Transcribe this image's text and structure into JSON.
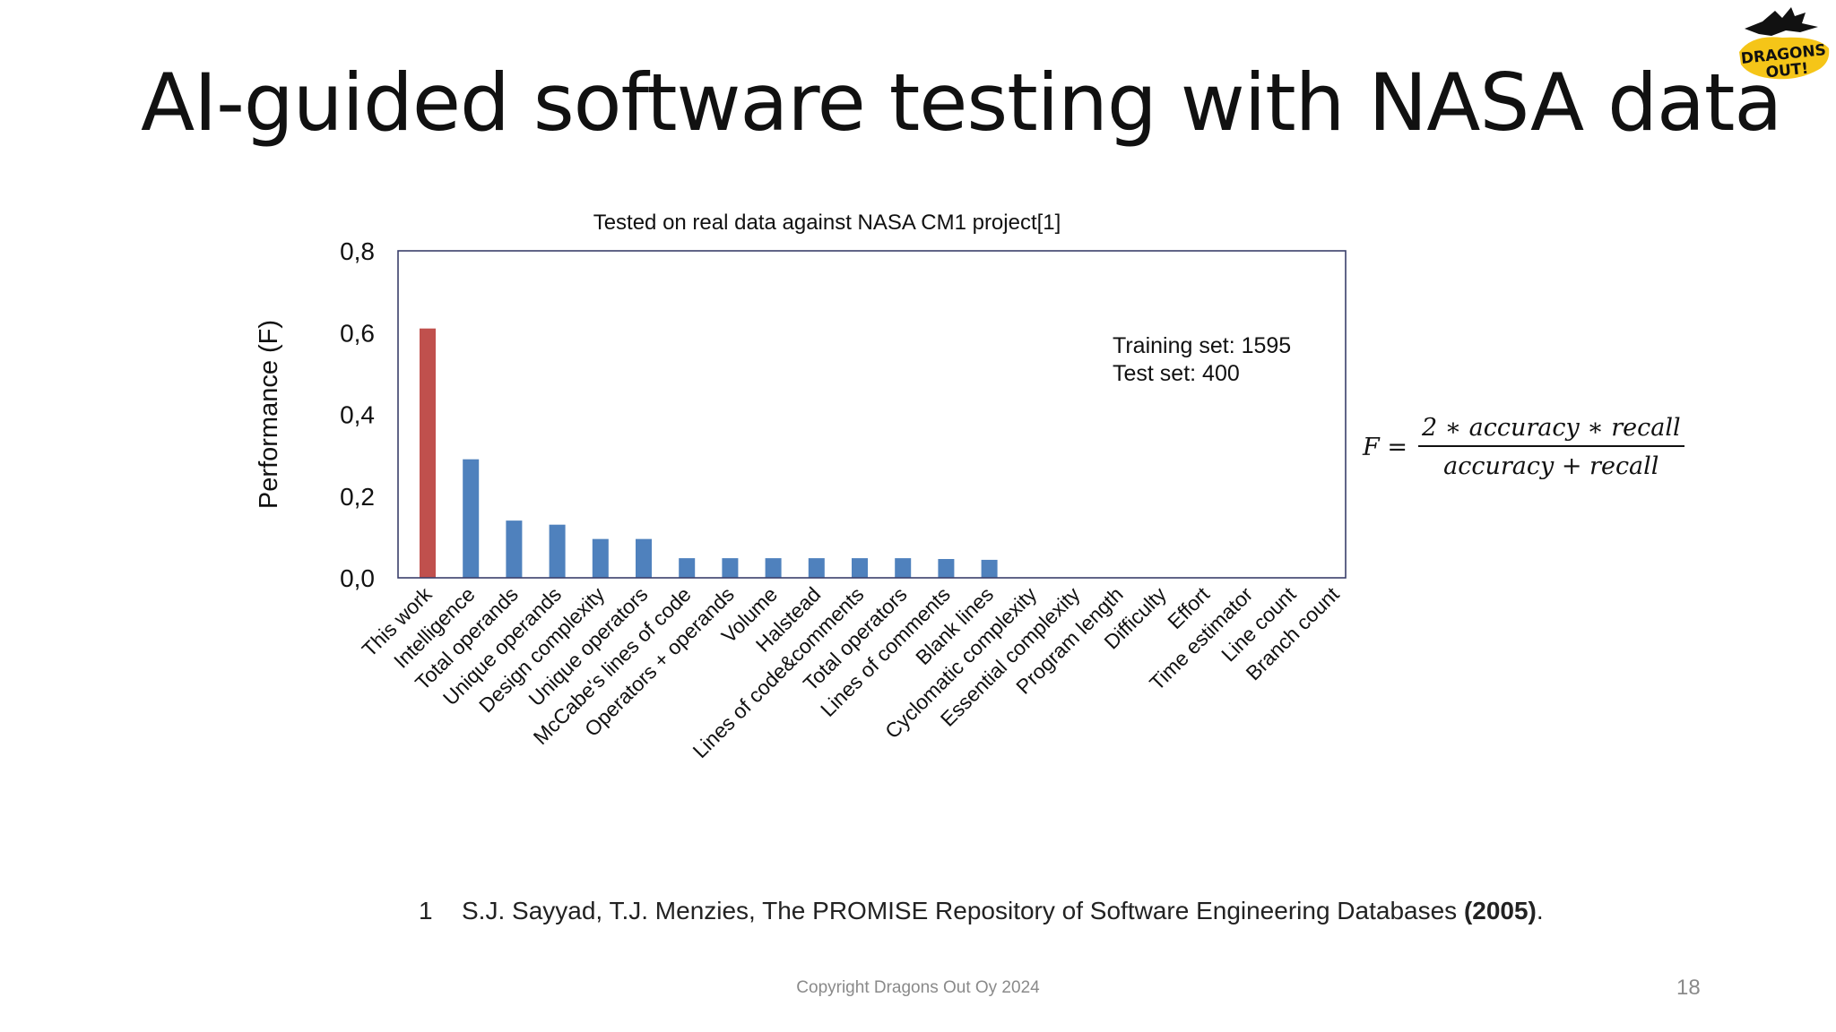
{
  "slide": {
    "title": "AI-guided software testing with NASA data",
    "logo_text_line1": "DRAGONS",
    "logo_text_line2": "OUT!",
    "reference_number": "1",
    "reference_text": "S.J. Sayyad, T.J. Menzies, The PROMISE Repository of Software Engineering  Databases ",
    "reference_year": "(2005)",
    "reference_end": ".",
    "copyright": "Copyright Dragons Out Oy 2024",
    "page_number": "18"
  },
  "formula": {
    "lhs": "F =",
    "numerator": "2 ∗ accuracy ∗ recall",
    "denominator": "accuracy + recall"
  },
  "chart_data": {
    "type": "bar",
    "title": "Tested on real data against NASA CM1 project[1]",
    "ylabel": "Performance (F)",
    "xlabel": "",
    "ylim": [
      0,
      0.8
    ],
    "yticks": [
      "0,0",
      "0,2",
      "0,4",
      "0,6",
      "0,8"
    ],
    "grid": false,
    "annotation_lines": [
      "Training set: 1595",
      "Test set:   400"
    ],
    "categories": [
      "This work",
      "Intelligence",
      "Total operands",
      "Unique operands",
      "Design complexity",
      "Unique operators",
      "McCabe's lines of code",
      "Operators + operands",
      "Volume",
      "Halstead",
      "Lines of code&comments",
      "Total operators",
      "Lines of comments",
      "Blank lines",
      "Cyclomatic complexity",
      "Essential complexity",
      "Program length",
      "Difficulty",
      "Effort",
      "Time estimator",
      "Line count",
      "Branch count"
    ],
    "values": [
      0.61,
      0.29,
      0.14,
      0.13,
      0.095,
      0.095,
      0.048,
      0.048,
      0.048,
      0.048,
      0.048,
      0.048,
      0.046,
      0.044,
      0,
      0,
      0,
      0,
      0,
      0,
      0,
      0
    ],
    "colors": {
      "highlight": "#c0504d",
      "default": "#4f81bd",
      "axis_frame": "#3a3f6b"
    }
  }
}
